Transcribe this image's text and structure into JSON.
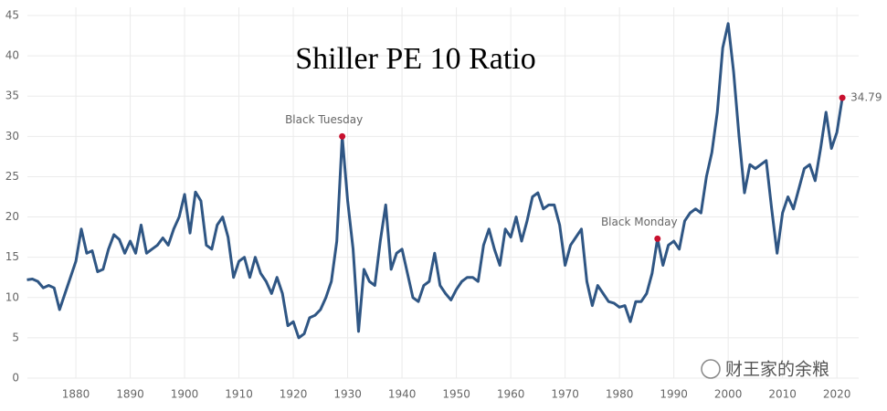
{
  "chart_data": {
    "type": "line",
    "title": "Shiller PE 10 Ratio",
    "x": [
      1871,
      1872,
      1873,
      1874,
      1875,
      1876,
      1877,
      1878,
      1879,
      1880,
      1881,
      1882,
      1883,
      1884,
      1885,
      1886,
      1887,
      1888,
      1889,
      1890,
      1891,
      1892,
      1893,
      1894,
      1895,
      1896,
      1897,
      1898,
      1899,
      1900,
      1901,
      1902,
      1903,
      1904,
      1905,
      1906,
      1907,
      1908,
      1909,
      1910,
      1911,
      1912,
      1913,
      1914,
      1915,
      1916,
      1917,
      1918,
      1919,
      1920,
      1921,
      1922,
      1923,
      1924,
      1925,
      1926,
      1927,
      1928,
      1929,
      1930,
      1931,
      1932,
      1933,
      1934,
      1935,
      1936,
      1937,
      1938,
      1939,
      1940,
      1941,
      1942,
      1943,
      1944,
      1945,
      1946,
      1947,
      1948,
      1949,
      1950,
      1951,
      1952,
      1953,
      1954,
      1955,
      1956,
      1957,
      1958,
      1959,
      1960,
      1961,
      1962,
      1963,
      1964,
      1965,
      1966,
      1967,
      1968,
      1969,
      1970,
      1971,
      1972,
      1973,
      1974,
      1975,
      1976,
      1977,
      1978,
      1979,
      1980,
      1981,
      1982,
      1983,
      1984,
      1985,
      1986,
      1987,
      1988,
      1989,
      1990,
      1991,
      1992,
      1993,
      1994,
      1995,
      1996,
      1997,
      1998,
      1999,
      2000,
      2001,
      2002,
      2003,
      2004,
      2005,
      2006,
      2007,
      2008,
      2009,
      2010,
      2011,
      2012,
      2013,
      2014,
      2015,
      2016,
      2017,
      2018,
      2019,
      2020,
      2021
    ],
    "series": [
      {
        "name": "Shiller PE 10",
        "color": "#2f5684",
        "values": [
          12.2,
          12.3,
          12,
          11.2,
          11.5,
          11.2,
          8.5,
          10.5,
          12.5,
          14.5,
          18.5,
          15.5,
          15.8,
          13.2,
          13.5,
          16,
          17.8,
          17.2,
          15.5,
          17,
          15.5,
          19,
          15.5,
          16,
          16.5,
          17.4,
          16.5,
          18.5,
          20,
          22.8,
          18,
          23.1,
          22,
          16.5,
          16,
          19,
          20,
          17.5,
          12.5,
          14.5,
          15,
          12.5,
          15,
          13,
          12,
          10.5,
          12.5,
          10.5,
          6.5,
          7,
          5,
          5.5,
          7.5,
          7.8,
          8.5,
          10,
          12,
          17,
          30,
          22,
          16,
          5.8,
          13.5,
          12,
          11.5,
          17,
          21.5,
          13.5,
          15.5,
          16,
          13,
          10,
          9.5,
          11.5,
          12,
          15.5,
          11.5,
          10.5,
          9.7,
          11,
          12,
          12.5,
          12.5,
          12,
          16.5,
          18.5,
          16,
          14,
          18.5,
          17.5,
          20,
          17,
          19.5,
          22.5,
          23,
          21,
          21.5,
          21.5,
          19,
          14,
          16.5,
          17.5,
          18.5,
          12,
          9,
          11.5,
          10.5,
          9.5,
          9.3,
          8.8,
          9,
          7,
          9.5,
          9.5,
          10.5,
          13,
          17.3,
          14,
          16.5,
          17,
          16,
          19.5,
          20.5,
          21,
          20.5,
          25,
          28,
          33,
          41,
          44,
          38,
          30,
          23,
          26.5,
          26,
          26.5,
          27,
          21,
          15.5,
          20.5,
          22.5,
          21,
          23.5,
          26,
          26.5,
          24.5,
          28.5,
          33,
          28.5,
          30.5,
          34.79
        ]
      }
    ],
    "annotations": [
      {
        "label": "Black Tuesday",
        "x": 1929,
        "y": 30
      },
      {
        "label": "Black Monday",
        "x": 1987,
        "y": 17.3
      },
      {
        "x": 2021,
        "y": 34.79
      }
    ],
    "xlim": [
      1871,
      2023
    ],
    "ylim": [
      0,
      45
    ],
    "xticks": [
      1880,
      1890,
      1900,
      1910,
      1920,
      1930,
      1940,
      1950,
      1960,
      1970,
      1980,
      1990,
      2000,
      2010,
      2020
    ],
    "yticks": [
      0,
      5,
      10,
      15,
      20,
      25,
      30,
      35,
      40,
      45
    ],
    "grid": true,
    "marker_color": "#c8102e"
  },
  "watermark": "财王家的余粮"
}
